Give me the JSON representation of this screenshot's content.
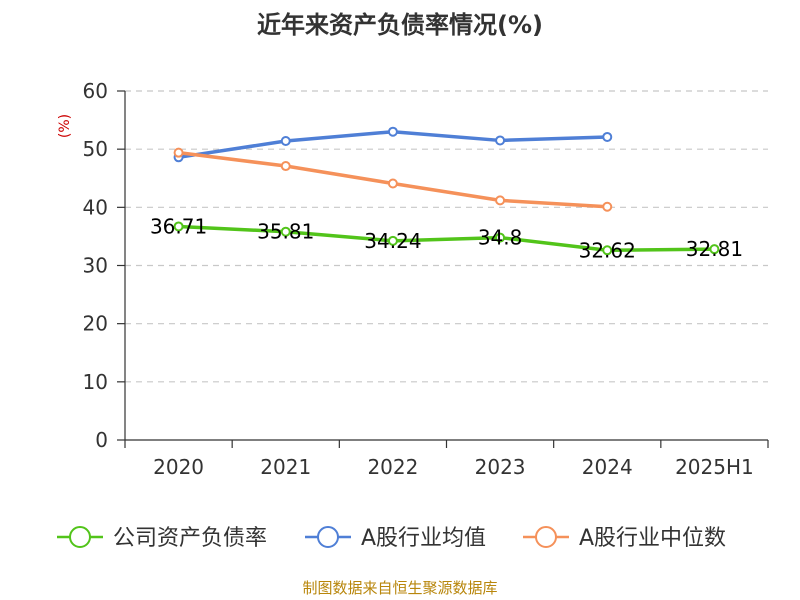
{
  "chart_data": {
    "type": "line",
    "title": "近年来资产负债率情况(%)",
    "ylabel": "(%)",
    "xlabel": "",
    "categories": [
      "2020",
      "2021",
      "2022",
      "2023",
      "2024",
      "2025H1"
    ],
    "ylim": [
      0,
      60
    ],
    "yticks": [
      0,
      10,
      20,
      30,
      40,
      50,
      60
    ],
    "grid": true,
    "legend_position": "bottom",
    "series": [
      {
        "name": "公司资产负债率",
        "color": "#52c41a",
        "values": [
          36.71,
          35.81,
          34.24,
          34.8,
          32.62,
          32.81
        ],
        "labels": [
          "36.71",
          "35.81",
          "34.24",
          "34.8",
          "32.62",
          "32.81"
        ]
      },
      {
        "name": "A股行业均值",
        "color": "#4f7fd6",
        "values": [
          48.6,
          51.4,
          53.0,
          51.5,
          52.1,
          null
        ]
      },
      {
        "name": "A股行业中位数",
        "color": "#f5915a",
        "values": [
          49.4,
          47.1,
          44.1,
          41.2,
          40.1,
          null
        ]
      }
    ],
    "source": "制图数据来自恒生聚源数据库"
  }
}
